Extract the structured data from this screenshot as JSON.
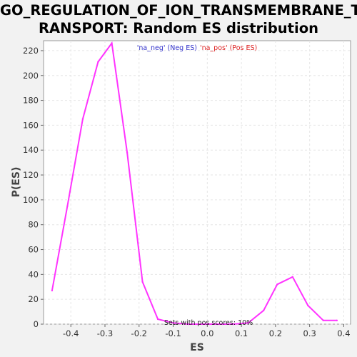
{
  "chart_data": {
    "type": "line",
    "title_lines": [
      "GO_REGULATION_OF_ION_TRANSMEMBRANE_T",
      "RANSPORT: Random ES distribution"
    ],
    "xlabel": "ES",
    "ylabel": "P(ES)",
    "xlim": [
      -0.48,
      0.42
    ],
    "ylim": [
      0,
      228
    ],
    "xticks": [
      -0.4,
      -0.3,
      -0.2,
      -0.1,
      0.0,
      0.1,
      0.2,
      0.3,
      0.4
    ],
    "xtick_labels": [
      "-0.4",
      "-0.3",
      "-0.2",
      "-0.1",
      "0.0",
      "0.1",
      "0.2",
      "0.3",
      "0.4"
    ],
    "yticks": [
      0,
      20,
      40,
      60,
      80,
      100,
      120,
      140,
      160,
      180,
      200,
      220
    ],
    "ytick_labels": [
      "0",
      "20",
      "40",
      "60",
      "80",
      "100",
      "120",
      "140",
      "160",
      "180",
      "200",
      "220"
    ],
    "grid": true,
    "legend": {
      "placement": "top-center",
      "entries": [
        {
          "text": "'na_neg' (Neg ES)",
          "color": "#3333cc"
        },
        {
          "text": "'na_pos' (Pos ES)",
          "color": "#dd2222"
        }
      ]
    },
    "annotation": "Sets with pos scores: 10%",
    "series": [
      {
        "color": "#ff33ff",
        "x": [
          -0.455,
          -0.41,
          -0.365,
          -0.32,
          -0.28,
          -0.235,
          -0.19,
          -0.145,
          -0.1,
          -0.055,
          -0.01,
          0.03,
          0.075,
          0.12,
          0.165,
          0.205,
          0.25,
          0.295,
          0.34,
          0.38
        ],
        "y": [
          27,
          95,
          165,
          211,
          226,
          138,
          34,
          4,
          1,
          0,
          0,
          0,
          0,
          1,
          11,
          32,
          38,
          15,
          3,
          3
        ]
      }
    ]
  }
}
